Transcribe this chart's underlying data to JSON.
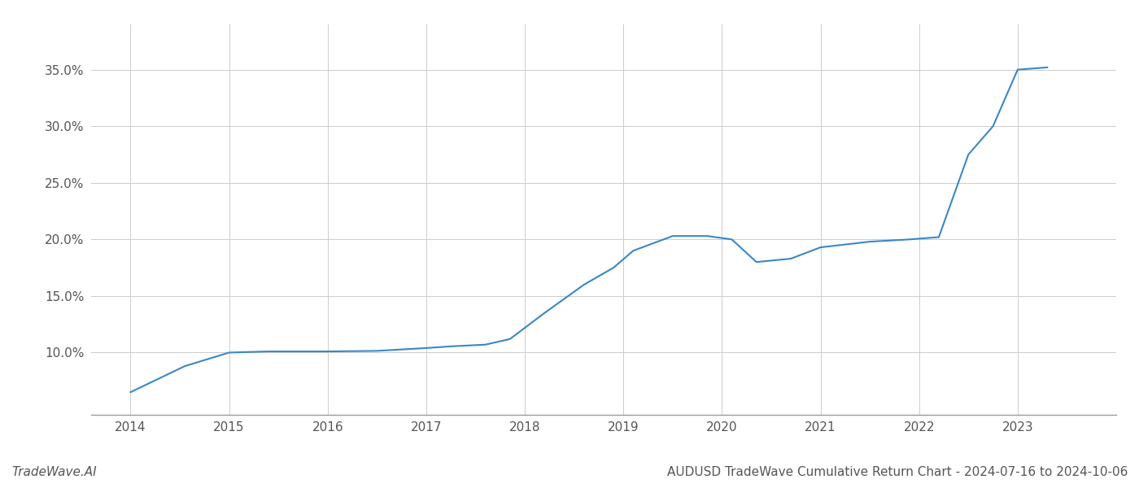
{
  "x_values": [
    2014.0,
    2014.55,
    2015.0,
    2015.4,
    2016.0,
    2016.5,
    2017.0,
    2017.25,
    2017.6,
    2017.85,
    2018.2,
    2018.6,
    2018.9,
    2019.1,
    2019.5,
    2019.85,
    2020.1,
    2020.35,
    2020.7,
    2021.0,
    2021.5,
    2021.9,
    2022.2,
    2022.5,
    2022.75,
    2023.0,
    2023.3
  ],
  "y_values": [
    6.5,
    8.8,
    10.0,
    10.1,
    10.1,
    10.15,
    10.4,
    10.55,
    10.7,
    11.2,
    13.5,
    16.0,
    17.5,
    19.0,
    20.3,
    20.3,
    20.0,
    18.0,
    18.3,
    19.3,
    19.8,
    20.0,
    20.2,
    27.5,
    30.0,
    35.0,
    35.2
  ],
  "line_color": "#3a87c8",
  "line_width": 1.5,
  "x_ticks": [
    2014,
    2015,
    2016,
    2017,
    2018,
    2019,
    2020,
    2021,
    2022,
    2023
  ],
  "y_ticks": [
    10.0,
    15.0,
    20.0,
    25.0,
    30.0,
    35.0
  ],
  "y_min": 4.5,
  "y_max": 39.0,
  "x_min": 2013.6,
  "x_max": 2024.0,
  "grid_color": "#cccccc",
  "background_color": "#ffffff",
  "title": "AUDUSD TradeWave Cumulative Return Chart - 2024-07-16 to 2024-10-06",
  "bottom_left_label": "TradeWave.AI",
  "bottom_left_color": "#555555",
  "title_color": "#555555",
  "tick_label_color": "#555555",
  "tick_fontsize": 11,
  "title_fontsize": 11
}
